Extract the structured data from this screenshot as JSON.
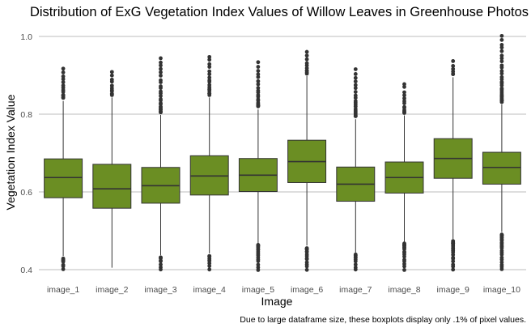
{
  "chart_data": {
    "type": "boxplot",
    "title": "Distribution of ExG Vegetation Index Values of Willow Leaves in Greenhouse Photos",
    "xlabel": "Image",
    "ylabel": "Vegetation Index Value",
    "caption": "Due to large dataframe size, these boxplots display only .1% of pixel values.",
    "ylim": [
      0.4,
      1.0
    ],
    "yticks": [
      0.4,
      0.6,
      0.8,
      1.0
    ],
    "ytick_labels": [
      "0.4",
      "0.6",
      "0.8",
      "1.0"
    ],
    "grid": true,
    "fill_color": "#6b8e23",
    "line_color": "#333333",
    "grid_color": "#bdbdbd",
    "categories": [
      "image_1",
      "image_2",
      "image_3",
      "image_4",
      "image_5",
      "image_6",
      "image_7",
      "image_8",
      "image_9",
      "image_10"
    ],
    "boxes": [
      {
        "q1": 0.585,
        "median": 0.637,
        "q3": 0.685,
        "whisker_low": 0.435,
        "whisker_high": 0.834,
        "outlier_low_min": 0.4,
        "outlier_high_max": 0.918
      },
      {
        "q1": 0.558,
        "median": 0.608,
        "q3": 0.671,
        "whisker_low": 0.405,
        "whisker_high": 0.843,
        "outlier_low_min": null,
        "outlier_high_max": 0.91
      },
      {
        "q1": 0.571,
        "median": 0.616,
        "q3": 0.663,
        "whisker_low": 0.437,
        "whisker_high": 0.798,
        "outlier_low_min": 0.4,
        "outlier_high_max": 0.945
      },
      {
        "q1": 0.592,
        "median": 0.641,
        "q3": 0.693,
        "whisker_low": 0.442,
        "whisker_high": 0.843,
        "outlier_low_min": 0.4,
        "outlier_high_max": 0.949
      },
      {
        "q1": 0.601,
        "median": 0.643,
        "q3": 0.686,
        "whisker_low": 0.468,
        "whisker_high": 0.812,
        "outlier_low_min": 0.4,
        "outlier_high_max": 0.933
      },
      {
        "q1": 0.624,
        "median": 0.678,
        "q3": 0.733,
        "whisker_low": 0.462,
        "whisker_high": 0.898,
        "outlier_low_min": 0.4,
        "outlier_high_max": 0.962
      },
      {
        "q1": 0.576,
        "median": 0.62,
        "q3": 0.664,
        "whisker_low": 0.444,
        "whisker_high": 0.787,
        "outlier_low_min": 0.4,
        "outlier_high_max": 0.914
      },
      {
        "q1": 0.597,
        "median": 0.637,
        "q3": 0.677,
        "whisker_low": 0.472,
        "whisker_high": 0.797,
        "outlier_low_min": 0.4,
        "outlier_high_max": 0.879
      },
      {
        "q1": 0.635,
        "median": 0.686,
        "q3": 0.737,
        "whisker_low": 0.479,
        "whisker_high": 0.895,
        "outlier_low_min": 0.4,
        "outlier_high_max": 0.937
      },
      {
        "q1": 0.62,
        "median": 0.663,
        "q3": 0.702,
        "whisker_low": 0.497,
        "whisker_high": 0.825,
        "outlier_low_min": 0.4,
        "outlier_high_max": 1.0
      }
    ]
  }
}
